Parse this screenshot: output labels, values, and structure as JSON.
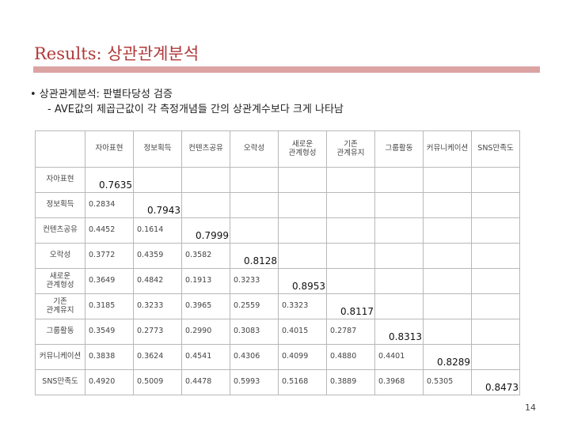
{
  "slide": {
    "title": "Results: 상관관계분석",
    "bullet": "• 상관관계분석: 판별타당성 검증",
    "sub": "- AVE값의 제곱근값이 각 측정개념들 간의 상관계수보다 크게 나타남",
    "page_number": "14"
  },
  "table": {
    "columns": [
      "자아표현",
      "정보획득",
      "컨텐츠공유",
      "오락성",
      "새로운\n관계형성",
      "기존\n관계유지",
      "그룹활동",
      "커뮤니케이션",
      "SNS만족도"
    ],
    "rows": [
      {
        "label": "자아표현",
        "values": [
          "0.7635"
        ]
      },
      {
        "label": "정보획득",
        "values": [
          "0.2834",
          "0.7943"
        ]
      },
      {
        "label": "컨텐츠공유",
        "values": [
          "0.4452",
          "0.1614",
          "0.7999"
        ]
      },
      {
        "label": "오락성",
        "values": [
          "0.3772",
          "0.4359",
          "0.3582",
          "0.8128"
        ]
      },
      {
        "label": "새로운\n관계형성",
        "values": [
          "0.3649",
          "0.4842",
          "0.1913",
          "0.3233",
          "0.8953"
        ]
      },
      {
        "label": "기존\n관계유지",
        "values": [
          "0.3185",
          "0.3233",
          "0.3965",
          "0.2559",
          "0.3323",
          "0.8117"
        ]
      },
      {
        "label": "그룹활동",
        "values": [
          "0.3549",
          "0.2773",
          "0.2990",
          "0.3083",
          "0.4015",
          "0.2787",
          "0.8313"
        ]
      },
      {
        "label": "커뮤니케이션",
        "values": [
          "0.3838",
          "0.3624",
          "0.4541",
          "0.4306",
          "0.4099",
          "0.4880",
          "0.4401",
          "0.8289"
        ]
      },
      {
        "label": "SNS만족도",
        "values": [
          "0.4920",
          "0.5009",
          "0.4478",
          "0.5993",
          "0.5168",
          "0.3889",
          "0.3968",
          "0.5305",
          "0.8473"
        ]
      }
    ]
  }
}
